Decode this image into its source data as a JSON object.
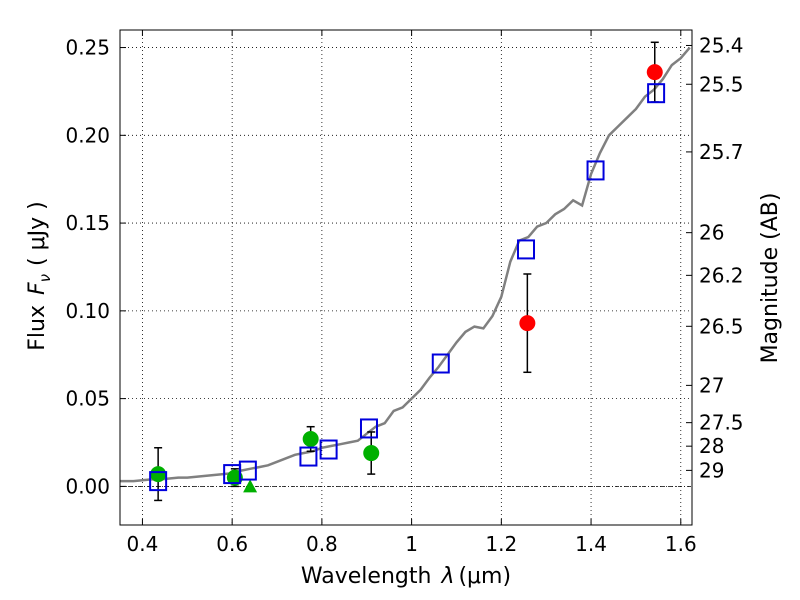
{
  "chart_data": {
    "type": "scatter",
    "title": "",
    "xlabel_prefix": "Wavelength",
    "xlabel_symbol": "λ",
    "xlabel_units": "(μm)",
    "ylabel_prefix": "Flux",
    "ylabel_symbol": "F",
    "ylabel_subscript": "ν",
    "ylabel_units": "( μJy )",
    "y2label": "Magnitude (AB)",
    "xlim": [
      0.35,
      1.625
    ],
    "ylim": [
      -0.022,
      0.26
    ],
    "xticks": [
      {
        "v": 0.4,
        "label": "0.4"
      },
      {
        "v": 0.6,
        "label": "0.6"
      },
      {
        "v": 0.8,
        "label": "0.8"
      },
      {
        "v": 1.0,
        "label": "1"
      },
      {
        "v": 1.2,
        "label": "1.2"
      },
      {
        "v": 1.4,
        "label": "1.4"
      },
      {
        "v": 1.6,
        "label": "1.6"
      }
    ],
    "yticks": [
      {
        "v": 0.0,
        "label": "0.00"
      },
      {
        "v": 0.05,
        "label": "0.05"
      },
      {
        "v": 0.1,
        "label": "0.10"
      },
      {
        "v": 0.15,
        "label": "0.15"
      },
      {
        "v": 0.2,
        "label": "0.20"
      },
      {
        "v": 0.25,
        "label": "0.25"
      }
    ],
    "magticks": [
      {
        "mag": 25.4,
        "label": "25.4"
      },
      {
        "mag": 25.5,
        "label": "25.5"
      },
      {
        "mag": 25.7,
        "label": "25.7"
      },
      {
        "mag": 26.0,
        "label": "26"
      },
      {
        "mag": 26.2,
        "label": "26.2"
      },
      {
        "mag": 26.5,
        "label": "26.5"
      },
      {
        "mag": 27.0,
        "label": "27"
      },
      {
        "mag": 27.5,
        "label": "27.5"
      },
      {
        "mag": 28.0,
        "label": "28"
      },
      {
        "mag": 29.0,
        "label": "29"
      }
    ],
    "grid": true,
    "colors": {
      "model": "#808080",
      "red": "#ff0000",
      "green": "#00b000",
      "blue": "#0000dd",
      "errorbar": "#000000"
    },
    "model_spectrum": {
      "name": "Model SED",
      "x": [
        0.35,
        0.38,
        0.4,
        0.42,
        0.44,
        0.46,
        0.48,
        0.5,
        0.52,
        0.54,
        0.56,
        0.58,
        0.6,
        0.62,
        0.64,
        0.66,
        0.68,
        0.7,
        0.72,
        0.74,
        0.76,
        0.78,
        0.8,
        0.82,
        0.84,
        0.86,
        0.88,
        0.9,
        0.92,
        0.94,
        0.96,
        0.98,
        1.0,
        1.02,
        1.04,
        1.06,
        1.08,
        1.1,
        1.12,
        1.14,
        1.16,
        1.18,
        1.2,
        1.22,
        1.24,
        1.26,
        1.28,
        1.3,
        1.32,
        1.34,
        1.36,
        1.38,
        1.4,
        1.42,
        1.44,
        1.46,
        1.48,
        1.5,
        1.52,
        1.54,
        1.56,
        1.58,
        1.6,
        1.62
      ],
      "y": [
        0.003,
        0.003,
        0.0035,
        0.004,
        0.004,
        0.0045,
        0.005,
        0.005,
        0.0055,
        0.006,
        0.0065,
        0.007,
        0.0075,
        0.009,
        0.01,
        0.011,
        0.012,
        0.014,
        0.016,
        0.018,
        0.019,
        0.02,
        0.022,
        0.023,
        0.024,
        0.025,
        0.026,
        0.03,
        0.034,
        0.036,
        0.043,
        0.045,
        0.05,
        0.055,
        0.062,
        0.068,
        0.075,
        0.082,
        0.088,
        0.091,
        0.09,
        0.097,
        0.108,
        0.128,
        0.14,
        0.142,
        0.148,
        0.15,
        0.155,
        0.158,
        0.163,
        0.16,
        0.178,
        0.19,
        0.2,
        0.205,
        0.21,
        0.215,
        0.222,
        0.226,
        0.232,
        0.24,
        0.244,
        0.25
      ]
    },
    "series": [
      {
        "name": "red-circles",
        "marker": "circle",
        "points": [
          {
            "x": 1.258,
            "y": 0.093,
            "yerr": 0.028
          },
          {
            "x": 1.542,
            "y": 0.236,
            "yerr": 0.017
          }
        ]
      },
      {
        "name": "green-circles",
        "marker": "circle",
        "points": [
          {
            "x": 0.435,
            "y": 0.007,
            "yerr": 0.015
          },
          {
            "x": 0.606,
            "y": 0.005,
            "yerr": 0.005
          },
          {
            "x": 0.775,
            "y": 0.027,
            "yerr": 0.007
          },
          {
            "x": 0.91,
            "y": 0.019,
            "yerr": 0.012
          }
        ]
      },
      {
        "name": "green-triangles",
        "marker": "triangle",
        "points": [
          {
            "x": 0.64,
            "y": 0.0
          }
        ]
      },
      {
        "name": "blue-squares",
        "marker": "square",
        "points": [
          {
            "x": 0.435,
            "y": 0.003
          },
          {
            "x": 0.6,
            "y": 0.007
          },
          {
            "x": 0.635,
            "y": 0.009
          },
          {
            "x": 0.77,
            "y": 0.017
          },
          {
            "x": 0.815,
            "y": 0.021
          },
          {
            "x": 0.905,
            "y": 0.033
          },
          {
            "x": 1.065,
            "y": 0.07
          },
          {
            "x": 1.255,
            "y": 0.135
          },
          {
            "x": 1.41,
            "y": 0.18
          },
          {
            "x": 1.545,
            "y": 0.224
          }
        ]
      }
    ]
  }
}
